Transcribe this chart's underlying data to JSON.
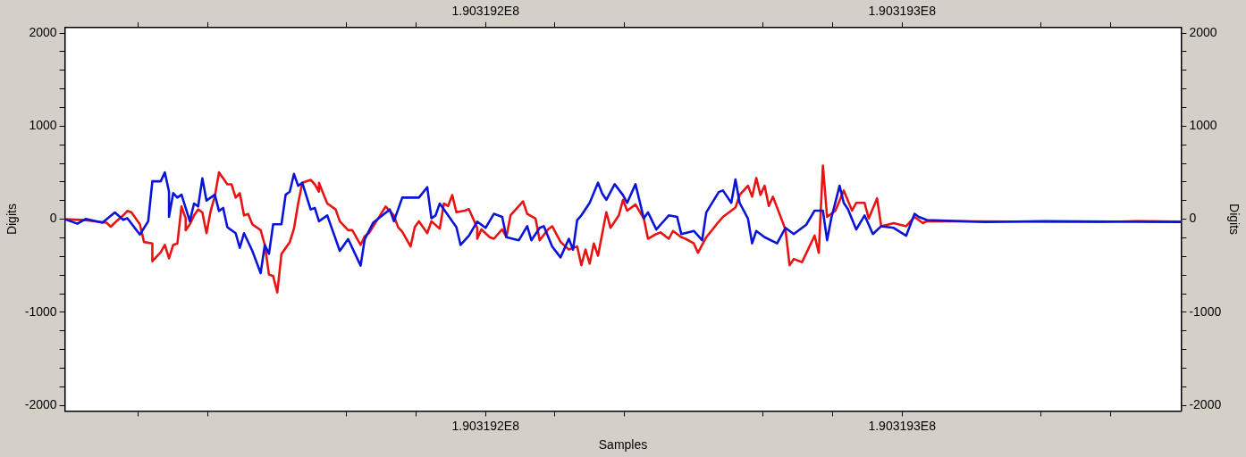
{
  "chart_data": {
    "type": "line",
    "xlabel": "Samples",
    "ylabel": "Digits",
    "y2label": "Digits",
    "xlim": [
      190319099,
      190319367
    ],
    "xticks": [
      {
        "value": 190319116.67,
        "label": null
      },
      {
        "value": 190319133.33,
        "label": null
      },
      {
        "value": 190319166.67,
        "label": null
      },
      {
        "value": 190319183.33,
        "label": null
      },
      {
        "value": 190319200,
        "label": "1.903192E8"
      },
      {
        "value": 190319216.67,
        "label": null
      },
      {
        "value": 190319233.33,
        "label": null
      },
      {
        "value": 190319266.67,
        "label": null
      },
      {
        "value": 190319283.33,
        "label": null
      },
      {
        "value": 190319300,
        "label": "1.903193E8"
      },
      {
        "value": 190319333.33,
        "label": null
      },
      {
        "value": 190319350,
        "label": null
      }
    ],
    "x2lim": [
      190319099,
      190319367
    ],
    "x2ticks": [
      {
        "value": 190319116.67,
        "label": null
      },
      {
        "value": 190319133.33,
        "label": null
      },
      {
        "value": 190319166.67,
        "label": null
      },
      {
        "value": 190319183.33,
        "label": null
      },
      {
        "value": 190319200,
        "label": "1.903192E8"
      },
      {
        "value": 190319216.67,
        "label": null
      },
      {
        "value": 190319233.33,
        "label": null
      },
      {
        "value": 190319266.67,
        "label": null
      },
      {
        "value": 190319283.33,
        "label": null
      },
      {
        "value": 190319300,
        "label": "1.903193E8"
      },
      {
        "value": 190319333.33,
        "label": null
      },
      {
        "value": 190319350,
        "label": null
      }
    ],
    "ylim": [
      -2060,
      2060
    ],
    "yticks": [
      -2000,
      {
        "value": -1800,
        "label": null
      },
      {
        "value": -1600,
        "label": null
      },
      {
        "value": -1400,
        "label": null
      },
      {
        "value": -1200,
        "label": null
      },
      -1000,
      {
        "value": -800,
        "label": null
      },
      {
        "value": -600,
        "label": null
      },
      {
        "value": -400,
        "label": null
      },
      {
        "value": -200,
        "label": null
      },
      0,
      {
        "value": 200,
        "label": null
      },
      {
        "value": 400,
        "label": null
      },
      {
        "value": 600,
        "label": null
      },
      {
        "value": 800,
        "label": null
      },
      1000,
      {
        "value": 1200,
        "label": null
      },
      {
        "value": 1400,
        "label": null
      },
      {
        "value": 1600,
        "label": null
      },
      {
        "value": 1800,
        "label": null
      },
      2000
    ],
    "y2lim": [
      -2060,
      2060
    ],
    "y2ticks": [
      -2000,
      {
        "value": -1800,
        "label": null
      },
      {
        "value": -1600,
        "label": null
      },
      {
        "value": -1400,
        "label": null
      },
      {
        "value": -1200,
        "label": null
      },
      -1000,
      {
        "value": -800,
        "label": null
      },
      {
        "value": -600,
        "label": null
      },
      {
        "value": -400,
        "label": null
      },
      {
        "value": -200,
        "label": null
      },
      0,
      {
        "value": 200,
        "label": null
      },
      {
        "value": 400,
        "label": null
      },
      {
        "value": 600,
        "label": null
      },
      {
        "value": 800,
        "label": null
      },
      1000,
      {
        "value": 1200,
        "label": null
      },
      {
        "value": 1400,
        "label": null
      },
      {
        "value": 1600,
        "label": null
      },
      {
        "value": 1800,
        "label": null
      },
      2000
    ],
    "grid": false,
    "legend": false,
    "marker": "none",
    "line_style": "solid",
    "series": [
      {
        "color": "#e81414",
        "x": [
          190319099,
          190319104,
          190319109,
          190319110,
          190319111,
          190319113,
          190319114,
          190319115,
          190319117,
          190319118,
          190319120,
          190319120,
          190319121,
          190319122,
          190319123,
          190319124,
          190319125,
          190319126,
          190319127,
          190319128,
          190319128,
          190319129,
          190319130,
          190319131,
          190319132,
          190319133,
          190319134,
          190319135,
          190319136,
          190319137,
          190319138,
          190319139,
          190319140,
          190319141,
          190319142,
          190319143,
          190319144,
          190319146,
          190319147,
          190319148,
          190319149,
          190319150,
          190319151,
          190319153,
          190319154,
          190319155,
          190319156,
          190319158,
          190319159,
          190319160,
          190319160,
          190319161,
          190319162,
          190319164,
          190319165,
          190319167,
          190319168,
          190319170,
          190319171,
          190319172,
          190319174,
          190319176,
          190319178,
          190319179,
          190319180,
          190319182,
          190319183,
          190319184,
          190319186,
          190319187,
          190319189,
          190319190,
          190319191,
          190319192,
          190319193,
          190319195,
          190319196,
          190319198,
          190319198,
          190319199,
          190319201,
          190319202,
          190319204,
          190319205,
          190319206,
          190319209,
          190319210,
          190319212,
          190319213,
          190319215,
          190319216,
          190319218,
          190319220,
          190319222,
          190319223,
          190319224,
          190319225,
          190319226,
          190319227,
          190319229,
          190319230,
          190319232,
          190319233,
          190319234,
          190319236,
          190319238,
          190319239,
          190319241,
          190319242,
          190319244,
          190319245,
          190319247,
          190319248,
          190319250,
          190319251,
          190319253,
          190319256,
          190319257,
          190319258,
          190319260,
          190319261,
          190319263,
          190319264,
          190319265,
          190319266,
          190319267,
          190319268,
          190319269,
          190319272,
          190319273,
          190319274,
          190319276,
          190319279,
          190319280,
          190319281,
          190319282,
          190319284,
          190319286,
          190319288,
          190319289,
          190319291,
          190319292,
          190319294,
          190319295,
          190319298,
          190319301,
          190319303,
          190319305,
          190319306,
          190319327,
          190319348,
          190319357,
          190319367
        ],
        "values": [
          0,
          -10,
          -38,
          -80,
          -38,
          41,
          89,
          73,
          -54,
          -245,
          -261,
          -452,
          -404,
          -356,
          -277,
          -420,
          -277,
          -261,
          137,
          10,
          -118,
          -54,
          41,
          105,
          73,
          -150,
          89,
          248,
          503,
          439,
          375,
          375,
          232,
          280,
          41,
          57,
          -54,
          -118,
          -277,
          -595,
          -611,
          -786,
          -372,
          -245,
          -102,
          169,
          391,
          423,
          375,
          296,
          391,
          280,
          169,
          105,
          -22,
          -118,
          -118,
          -277,
          -181,
          -150,
          -7,
          137,
          41,
          -86,
          -134,
          -293,
          -86,
          -22,
          -150,
          -22,
          -102,
          169,
          142,
          260,
          75,
          92,
          109,
          -93,
          -210,
          -109,
          -193,
          -210,
          -109,
          -193,
          42,
          192,
          58,
          8,
          -226,
          -109,
          -75,
          -243,
          -326,
          -293,
          -494,
          -326,
          -477,
          -260,
          -393,
          75,
          -93,
          42,
          209,
          92,
          158,
          8,
          -210,
          -159,
          -142,
          -210,
          -126,
          -193,
          -210,
          -260,
          -360,
          -193,
          -26,
          25,
          58,
          125,
          260,
          360,
          242,
          443,
          260,
          360,
          142,
          242,
          -109,
          -494,
          -427,
          -461,
          -176,
          -360,
          577,
          25,
          92,
          309,
          92,
          176,
          176,
          8,
          225,
          -75,
          -42,
          -75,
          25,
          -42,
          -20,
          -25,
          -30,
          -20,
          -25
        ]
      },
      {
        "color": "#0a14d8",
        "x": [
          190319099,
          190319102,
          190319104,
          190319108,
          190319111,
          190319113,
          190319114,
          190319117,
          190319119,
          190319120,
          190319122,
          190319123,
          190319124,
          190319124,
          190319125,
          190319126,
          190319127,
          190319129,
          190319130,
          190319131,
          190319132,
          190319133,
          190319134,
          190319135,
          190319136,
          190319137,
          190319138,
          190319140,
          190319141,
          190319142,
          190319144,
          190319146,
          190319147,
          190319148,
          190319149,
          190319151,
          190319152,
          190319153,
          190319154,
          190319155,
          190319156,
          190319158,
          190319159,
          190319160,
          190319162,
          190319163,
          190319165,
          190319166,
          190319167,
          190319170,
          190319171,
          190319173,
          190319177,
          190319178,
          190319180,
          190319184,
          190319186,
          190319187,
          190319188,
          190319189,
          190319191,
          190319193,
          190319194,
          190319196,
          190319198,
          190319200,
          190319202,
          190319204,
          190319205,
          190319208,
          190319210,
          190319211,
          190319213,
          190319214,
          190319216,
          190319218,
          190319220,
          190319221,
          190319222,
          190319223,
          190319225,
          190319227,
          190319228,
          190319229,
          190319231,
          190319233,
          190319234,
          190319236,
          190319238,
          190319239,
          190319241,
          190319242,
          190319244,
          190319246,
          190319247,
          190319250,
          190319252,
          190319253,
          190319256,
          190319257,
          190319259,
          190319260,
          190319261,
          190319263,
          190319264,
          190319265,
          190319267,
          190319270,
          190319272,
          190319274,
          190319277,
          190319279,
          190319281,
          190319282,
          190319283,
          190319285,
          190319286,
          190319287,
          190319289,
          190319291,
          190319293,
          190319295,
          190319298,
          190319301,
          190319303,
          190319304,
          190319306,
          190319320,
          190319334,
          190319351,
          190319367
        ],
        "values": [
          0,
          -48,
          3,
          -38,
          73,
          -7,
          10,
          -165,
          -22,
          407,
          407,
          503,
          296,
          26,
          280,
          232,
          264,
          -22,
          169,
          137,
          439,
          200,
          232,
          264,
          89,
          121,
          -86,
          -150,
          -308,
          -150,
          -340,
          -579,
          -277,
          -372,
          -54,
          -54,
          264,
          296,
          487,
          360,
          391,
          105,
          121,
          -22,
          41,
          -86,
          -340,
          -277,
          -213,
          -499,
          -213,
          -38,
          105,
          -22,
          232,
          232,
          344,
          10,
          41,
          169,
          41,
          -86,
          -277,
          -177,
          -26,
          -93,
          58,
          25,
          -193,
          -226,
          -75,
          -226,
          -93,
          -75,
          -294,
          -410,
          -210,
          -327,
          -9,
          41,
          176,
          393,
          276,
          209,
          376,
          259,
          176,
          376,
          8,
          74,
          -110,
          -59,
          41,
          25,
          -159,
          -126,
          -226,
          74,
          292,
          309,
          176,
          427,
          176,
          8,
          -260,
          -126,
          -193,
          -260,
          -93,
          -159,
          -59,
          92,
          92,
          -226,
          8,
          360,
          176,
          109,
          -110,
          41,
          -159,
          -75,
          -93,
          -177,
          58,
          25,
          -9,
          -30,
          -20,
          -25,
          -30
        ]
      }
    ]
  }
}
